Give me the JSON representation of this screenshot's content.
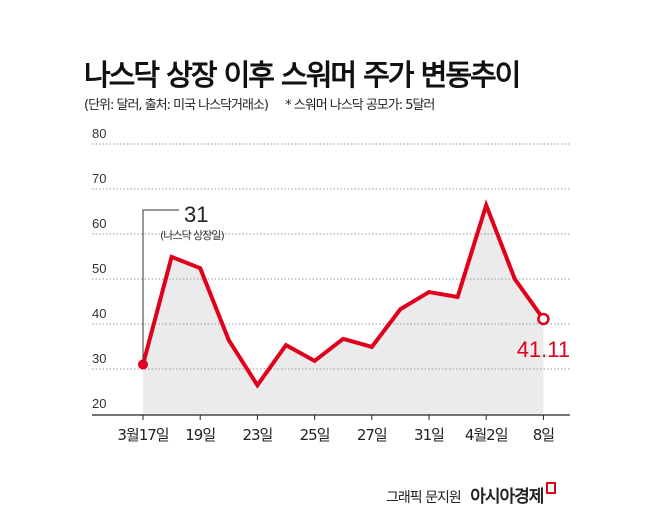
{
  "title": "나스닥 상장 이후 스워머 주가 변동추이",
  "subtitle_unit": "(단위: 달러, 출처: 미국 나스닥거래소)",
  "subtitle_note": "* 스워머 나스닥 공모가: 5달러",
  "footer": {
    "credit": "그래픽 문지원",
    "brand": "아시아경제"
  },
  "colors": {
    "line": "#e0001b",
    "fill": "#ebebeb",
    "grid": "#999999"
  },
  "chart_data": {
    "type": "area",
    "title": "나스닥 상장 이후 스워머 주가 변동추이",
    "ylabel": "달러",
    "ylim": [
      20,
      80
    ],
    "yticks": [
      20,
      30,
      40,
      50,
      60,
      70,
      80
    ],
    "grid": true,
    "categories": [
      "3월17일",
      "",
      "19일",
      "",
      "23일",
      "",
      "25일",
      "",
      "27일",
      "",
      "31일",
      "",
      "4월2일",
      "",
      "8일"
    ],
    "values": [
      31,
      54.9,
      52.4,
      36.4,
      26.4,
      35.3,
      31.8,
      36.7,
      34.9,
      43.3,
      47.1,
      46,
      66.4,
      50,
      41.11
    ],
    "annotations": [
      {
        "index": 0,
        "value_label": "31",
        "note": "(나스닥 상장일)"
      },
      {
        "index": 14,
        "value_label": "41.11"
      }
    ]
  }
}
